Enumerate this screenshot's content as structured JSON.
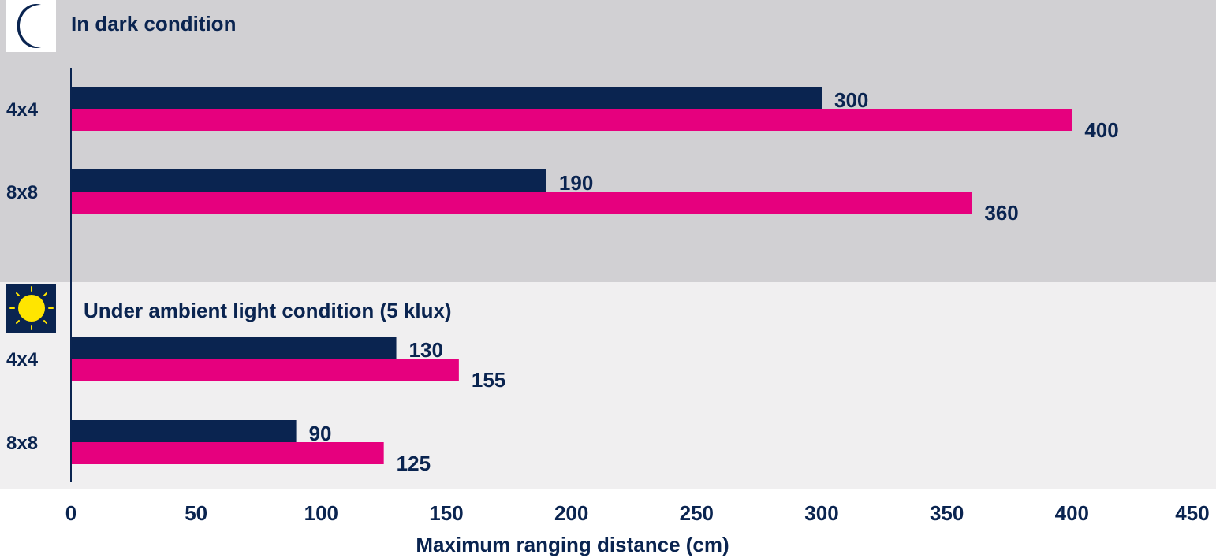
{
  "chart_data": {
    "type": "bar",
    "orientation": "horizontal",
    "xlabel": "Maximum ranging distance (cm)",
    "xlim": [
      0,
      450
    ],
    "x_ticks": [
      0,
      50,
      100,
      150,
      200,
      250,
      300,
      350,
      400,
      450
    ],
    "grid": false,
    "legend": "none",
    "colors": {
      "bar_dark": "#0a2450",
      "bar_pink": "#e6007e",
      "label": "#0a2450",
      "panel_dark_bg": "#d1d0d3",
      "panel_ambient_bg": "#f0eff0",
      "axis": "#0a2450"
    },
    "panels": [
      {
        "title": "In dark condition",
        "icon": "moon-icon",
        "categories": [
          "4x4",
          "8x8"
        ],
        "series": [
          {
            "values": [
              300,
              190
            ]
          },
          {
            "values": [
              400,
              360
            ]
          }
        ]
      },
      {
        "title": "Under ambient light condition (5 klux)",
        "icon": "sun-icon",
        "categories": [
          "4x4",
          "8x8"
        ],
        "series": [
          {
            "values": [
              130,
              90
            ]
          },
          {
            "values": [
              155,
              125
            ]
          }
        ]
      }
    ]
  }
}
